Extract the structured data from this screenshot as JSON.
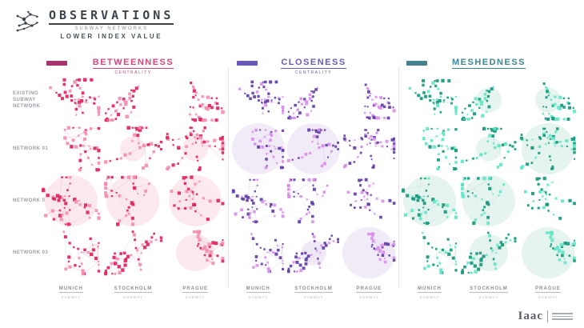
{
  "header": {
    "title": "OBSERVATIONS",
    "subtitle": "SUBWAY NETWORKS",
    "tagline": "LOWER INDEX VALUE"
  },
  "rows": [
    {
      "label": "EXISTING SUBWAY NETWORK"
    },
    {
      "label": "NETWORK 01"
    },
    {
      "label": "NETWORK 02"
    },
    {
      "label": "NETWORK 03"
    }
  ],
  "sections": [
    {
      "title": "BETWEENNESS",
      "subtitle": "CENTRALITY",
      "accent": "#a8326e",
      "title_color": "#d6457e",
      "node_dark": "#e0245e",
      "node_light": "#f48fb1",
      "edge_color": "#f5bfce",
      "circle_color": "#fbe9ee",
      "highlights": [
        {
          "row": 1,
          "col": 1,
          "size": "small"
        },
        {
          "row": 1,
          "col": 2,
          "size": "small"
        },
        {
          "row": 2,
          "col": 0,
          "size": "large"
        },
        {
          "row": 2,
          "col": 1,
          "size": "large"
        },
        {
          "row": 2,
          "col": 2,
          "size": "large"
        },
        {
          "row": 3,
          "col": 2,
          "size": "medium"
        }
      ],
      "cities": [
        {
          "name": "MUNICH",
          "sub": "SUBWAY"
        },
        {
          "name": "STOCKHOLM",
          "sub": "SUBWAY"
        },
        {
          "name": "PRAGUE",
          "sub": "SUBWAY"
        }
      ]
    },
    {
      "title": "CLOSENESS",
      "subtitle": "CENTRALITY",
      "accent": "#6b57b8",
      "title_color": "#6b5ab5",
      "node_dark": "#5f3ea6",
      "node_light": "#d98fe8",
      "edge_color": "#ddc8ee",
      "circle_color": "#f1ebf8",
      "highlights": [
        {
          "row": 1,
          "col": 0,
          "size": "large"
        },
        {
          "row": 1,
          "col": 1,
          "size": "large"
        },
        {
          "row": 3,
          "col": 1,
          "size": "small"
        },
        {
          "row": 3,
          "col": 2,
          "size": "large"
        }
      ],
      "cities": [
        {
          "name": "MUNICH",
          "sub": "SUBWAY"
        },
        {
          "name": "STOCKHOLM",
          "sub": "SUBWAY"
        },
        {
          "name": "PRAGUE",
          "sub": "SUBWAY"
        }
      ]
    },
    {
      "title": "MESHEDNESS",
      "subtitle": "",
      "accent": "#47808f",
      "title_color": "#3d8496",
      "node_dark": "#16987c",
      "node_light": "#63e6c8",
      "edge_color": "#bfe9de",
      "circle_color": "#e6f4ef",
      "highlights": [
        {
          "row": 0,
          "col": 1,
          "size": "small"
        },
        {
          "row": 0,
          "col": 2,
          "size": "small"
        },
        {
          "row": 1,
          "col": 1,
          "size": "small"
        },
        {
          "row": 1,
          "col": 2,
          "size": "large"
        },
        {
          "row": 2,
          "col": 0,
          "size": "large"
        },
        {
          "row": 2,
          "col": 1,
          "size": "large"
        },
        {
          "row": 3,
          "col": 1,
          "size": "medium"
        },
        {
          "row": 3,
          "col": 2,
          "size": "large"
        }
      ],
      "cities": [
        {
          "name": "MUNICH",
          "sub": "SUBWAY"
        },
        {
          "name": "STOCKHOLM",
          "sub": "SUBWAY"
        },
        {
          "name": "PRAGUE",
          "sub": "SUBWAY"
        }
      ]
    }
  ],
  "logo": {
    "text": "Iaac"
  }
}
